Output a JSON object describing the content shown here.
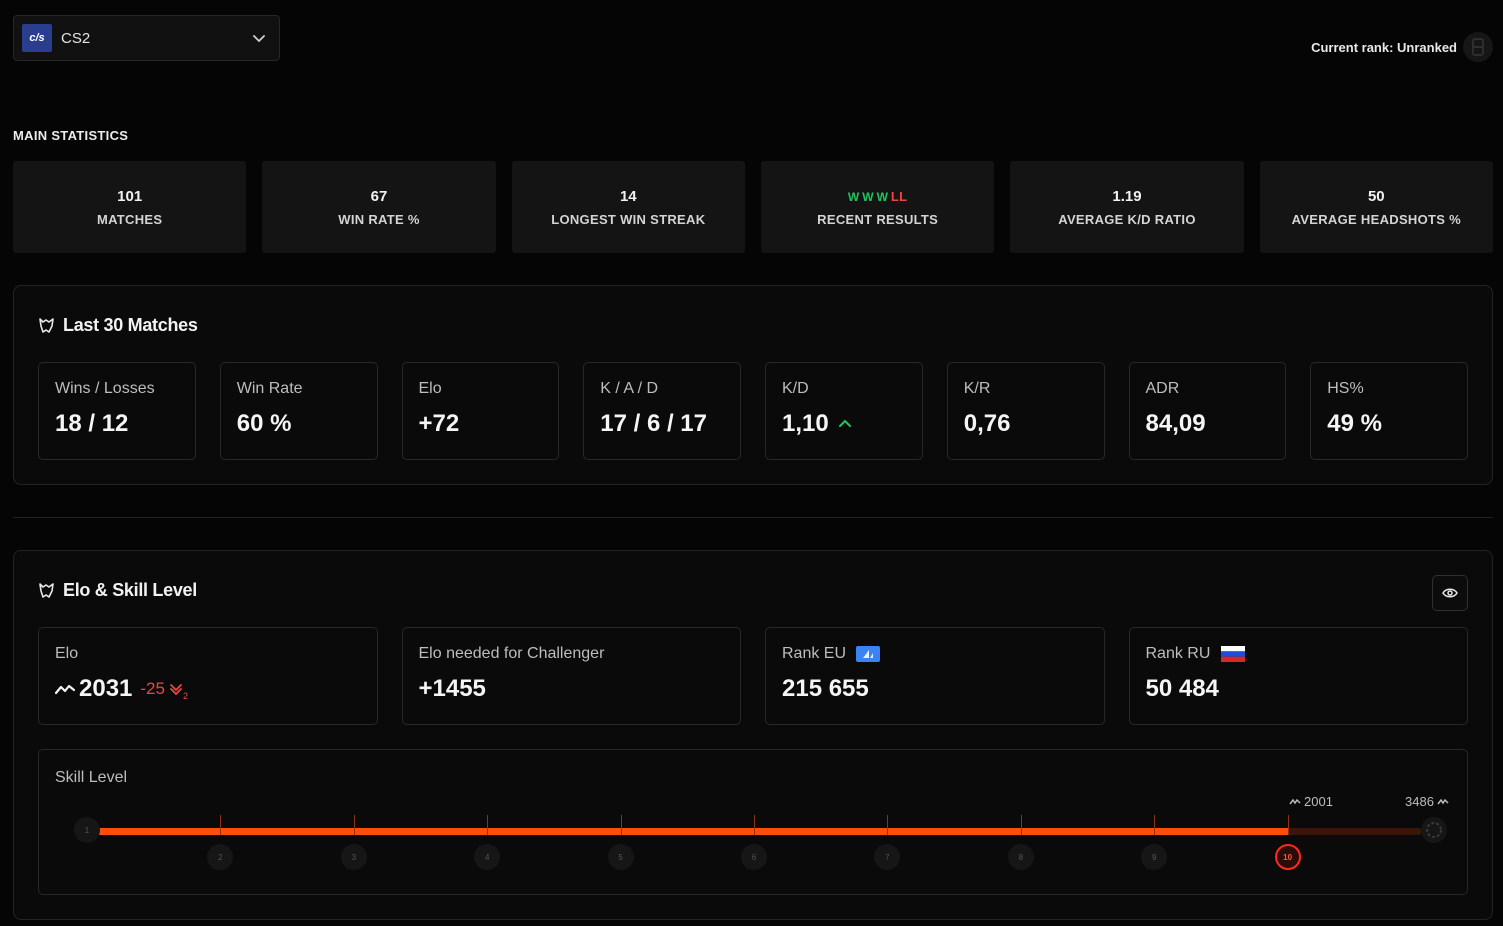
{
  "game_selector": {
    "logo_text": "c/s",
    "name": "CS2"
  },
  "current_rank": {
    "label": "Current rank: Unranked"
  },
  "main_statistics": {
    "title": "MAIN STATISTICS",
    "cards": [
      {
        "value": "101",
        "label": "MATCHES"
      },
      {
        "value": "67",
        "label": "WIN RATE %"
      },
      {
        "value": "14",
        "label": "LONGEST WIN STREAK"
      },
      {
        "value": "",
        "label": "RECENT RESULTS"
      },
      {
        "value": "1.19",
        "label": "AVERAGE K/D RATIO"
      },
      {
        "value": "50",
        "label": "AVERAGE HEADSHOTS %"
      }
    ],
    "recent_results": [
      "W",
      "W",
      "W",
      "L",
      "L"
    ]
  },
  "last30": {
    "title": "Last 30 Matches",
    "cards": [
      {
        "label": "Wins / Losses",
        "value": "18 / 12"
      },
      {
        "label": "Win Rate",
        "value": "60 %"
      },
      {
        "label": "Elo",
        "value": "+72"
      },
      {
        "label": "K / A / D",
        "value": "17 / 6 / 17"
      },
      {
        "label": "K/D",
        "value": "1,10"
      },
      {
        "label": "K/R",
        "value": "0,76"
      },
      {
        "label": "ADR",
        "value": "84,09"
      },
      {
        "label": "HS%",
        "value": "49 %"
      }
    ]
  },
  "elo_skill": {
    "title": "Elo & Skill Level",
    "cards": [
      {
        "label": "Elo",
        "value": "2031",
        "delta": "-25",
        "delta_sub": "2"
      },
      {
        "label": "Elo needed for Challenger",
        "value": "+1455"
      },
      {
        "label": "Rank EU",
        "value": "215 655"
      },
      {
        "label": "Rank RU",
        "value": "50 484"
      }
    ],
    "skill_level": {
      "title": "Skill Level",
      "current_level": 10,
      "levels": [
        "1",
        "2",
        "3",
        "4",
        "5",
        "6",
        "7",
        "8",
        "9",
        "10"
      ],
      "current_elo_mark": "2001",
      "challenger_elo_mark": "3486",
      "progress": 0.9
    }
  },
  "colors": {
    "accent": "#ff4d0a",
    "win": "#22c55e",
    "loss": "#ef4444",
    "up": "#22c55e",
    "down": "#ef4444"
  },
  "icons": {
    "game_logo": "cs2-logo-icon",
    "dropdown": "chevron-down-icon",
    "rank_badge": "rank-badge-icon",
    "section": "wolf-icon",
    "visibility": "eye-icon",
    "trend_up": "arrow-up-icon",
    "trend_down": "double-chevron-down-icon",
    "elo": "trend-line-icon",
    "eu_flag": "eu-flag-icon",
    "ru_flag": "ru-flag-icon"
  }
}
